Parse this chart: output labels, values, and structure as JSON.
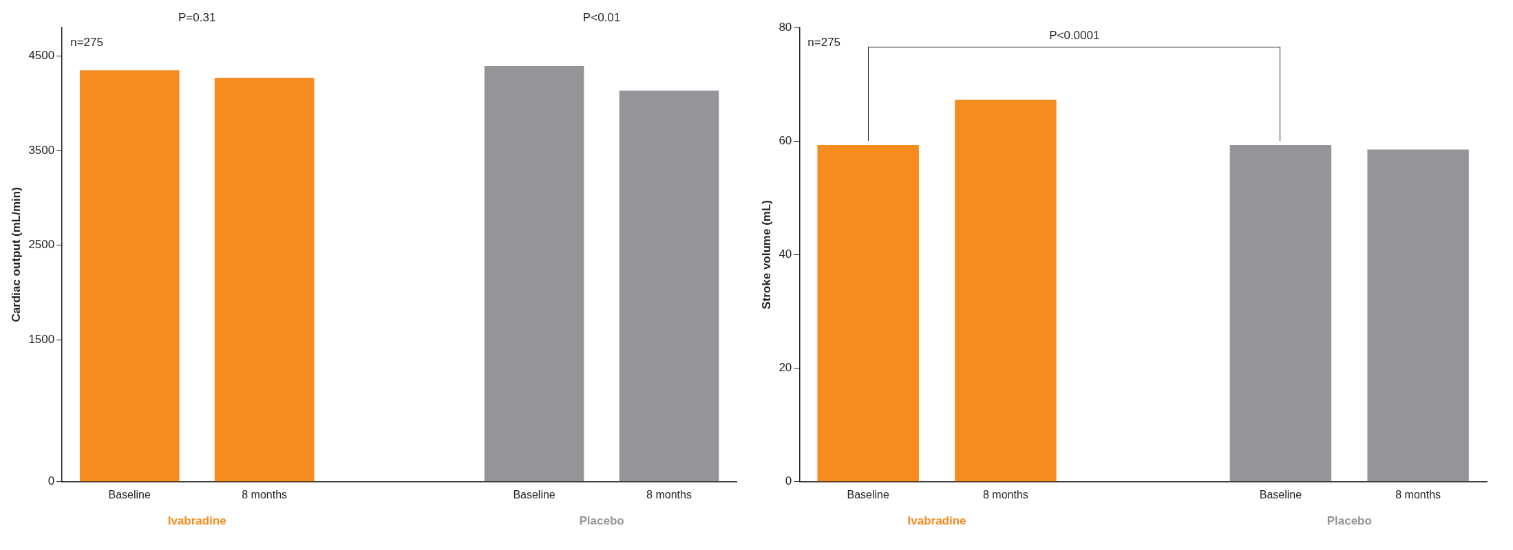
{
  "chart_data": [
    {
      "type": "bar",
      "ylabel": "Cardiac output (mL/min)",
      "categories": [
        "Baseline",
        "8 months",
        null,
        "Baseline",
        "8 months"
      ],
      "series": [
        {
          "name": "Ivabradine",
          "color": "#f68b1f",
          "values": [
            4348,
            4268,
            null,
            null,
            null
          ]
        },
        {
          "name": "Placebo",
          "color": "#939598",
          "values": [
            null,
            null,
            null,
            4393,
            4134
          ]
        }
      ],
      "ylim": [
        0,
        4800
      ],
      "yticks": [
        0,
        1500,
        2500,
        3500,
        4500
      ],
      "grid": false,
      "legend": false,
      "annotations": [
        "n=275",
        "P=0.31",
        "P<0.01"
      ]
    },
    {
      "type": "bar",
      "ylabel": "Stroke volume (mL)",
      "categories": [
        "Baseline",
        "8 months",
        null,
        "Baseline",
        "8 months"
      ],
      "series": [
        {
          "name": "Ivabradine",
          "color": "#f68b1f",
          "values": [
            59.3,
            67.3,
            null,
            null,
            null
          ]
        },
        {
          "name": "Placebo",
          "color": "#939598",
          "values": [
            null,
            null,
            null,
            59.3,
            58.5
          ]
        }
      ],
      "ylim": [
        0,
        80
      ],
      "yticks": [
        0,
        20,
        40,
        60,
        80
      ],
      "grid": false,
      "legend": false,
      "annotations": [
        "n=275",
        "P<0.0001"
      ]
    }
  ]
}
